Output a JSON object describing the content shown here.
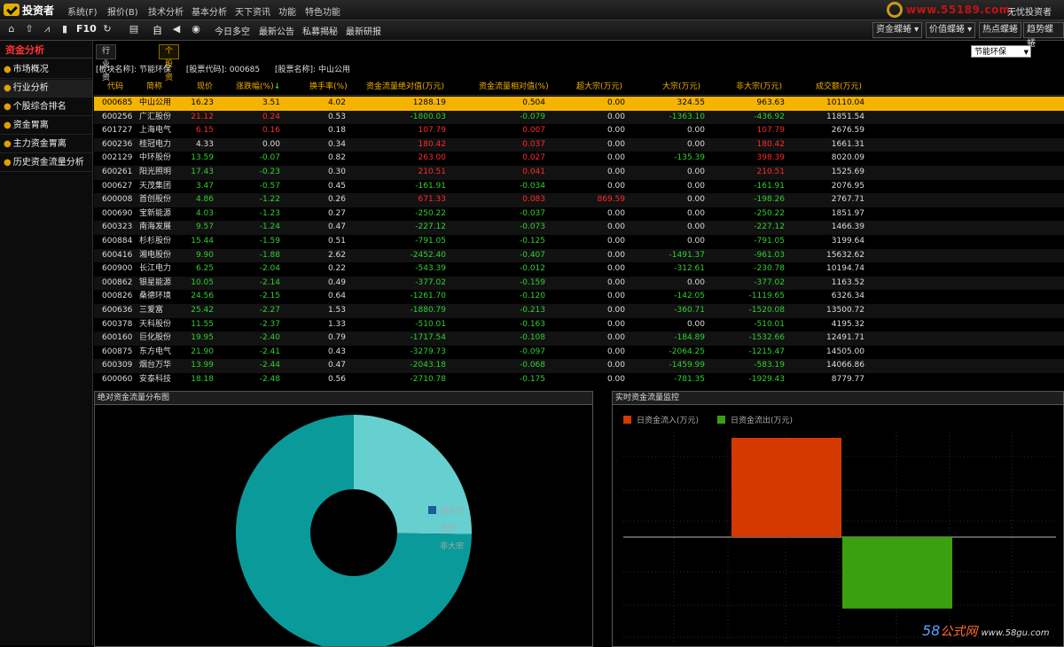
{
  "app": {
    "name": "投资者",
    "user": "无忧投资者",
    "site": "www.55189.com"
  },
  "menu": [
    "系统(F)",
    "报价(B)",
    "技术分析",
    "基本分析",
    "天下资讯",
    "功能",
    "特色功能"
  ],
  "toolbar": {
    "icons": [
      "home-icon",
      "up-arrow-icon",
      "trend-icon",
      "bar-icon",
      "F10",
      "refresh-icon",
      "list-icon",
      "self-icon",
      "sound-icon",
      "record-icon"
    ],
    "f10": "F10",
    "self": "自",
    "links": [
      "今日多空",
      "最新公告",
      "私募揭秘",
      "最新研报"
    ],
    "right_buttons": [
      "资金蝶蜷",
      "价值蝶蜷",
      "热点蝶蜷",
      "趋势蝶蜷"
    ]
  },
  "sidebar": {
    "title": "资金分析",
    "items": [
      "市场概况",
      "行业分析",
      "个股综合排名",
      "资金胃离",
      "主力资金胃离",
      "历史资金流量分析"
    ],
    "active_index": 1
  },
  "tabs": [
    "行业资金流量",
    "个股资金流量明细"
  ],
  "active_tab": 1,
  "sector_select": "节能环保",
  "info": {
    "sector_label": "[板块名称]:",
    "sector_value": "节能环保",
    "code_label": "[股票代码]:",
    "code_value": "000685",
    "name_label": "[股票名称]:",
    "name_value": "中山公用"
  },
  "table": {
    "headers": [
      "代码",
      "简称",
      "现价",
      "涨跌幅(%)",
      "换手率(%)",
      "资金流量绝对值(万元)",
      "资金流量相对值(%)",
      "超大宗(万元)",
      "大宗(万元)",
      "非大宗(万元)",
      "成交额(万元)"
    ],
    "sort_indicator": "↓",
    "rows": [
      [
        "000685",
        "中山公用",
        "16.23",
        "3.51",
        "4.02",
        "1288.19",
        "0.504",
        "0.00",
        "324.55",
        "963.63",
        "10110.04"
      ],
      [
        "600256",
        "广汇股份",
        "21.12",
        "0.24",
        "0.53",
        "-1800.03",
        "-0.079",
        "0.00",
        "-1363.10",
        "-436.92",
        "11851.54"
      ],
      [
        "601727",
        "上海电气",
        "6.15",
        "0.16",
        "0.18",
        "107.79",
        "0.007",
        "0.00",
        "0.00",
        "107.79",
        "2676.59"
      ],
      [
        "600236",
        "桂冠电力",
        "4.33",
        "0.00",
        "0.34",
        "180.42",
        "0.037",
        "0.00",
        "0.00",
        "180.42",
        "1661.31"
      ],
      [
        "002129",
        "中环股份",
        "13.59",
        "-0.07",
        "0.82",
        "263.00",
        "0.027",
        "0.00",
        "-135.39",
        "398.39",
        "8020.09"
      ],
      [
        "600261",
        "阳光照明",
        "17.43",
        "-0.23",
        "0.30",
        "210.51",
        "0.041",
        "0.00",
        "0.00",
        "210.51",
        "1525.69"
      ],
      [
        "000627",
        "天茂集团",
        "3.47",
        "-0.57",
        "0.45",
        "-161.91",
        "-0.034",
        "0.00",
        "0.00",
        "-161.91",
        "2076.95"
      ],
      [
        "600008",
        "首创股份",
        "4.86",
        "-1.22",
        "0.26",
        "671.33",
        "0.083",
        "869.59",
        "0.00",
        "-198.26",
        "2767.71"
      ],
      [
        "000690",
        "宝新能源",
        "4.03",
        "-1.23",
        "0.27",
        "-250.22",
        "-0.037",
        "0.00",
        "0.00",
        "-250.22",
        "1851.97"
      ],
      [
        "600323",
        "南海发展",
        "9.57",
        "-1.24",
        "0.47",
        "-227.12",
        "-0.073",
        "0.00",
        "0.00",
        "-227.12",
        "1466.39"
      ],
      [
        "600884",
        "杉杉股份",
        "15.44",
        "-1.59",
        "0.51",
        "-791.05",
        "-0.125",
        "0.00",
        "0.00",
        "-791.05",
        "3199.64"
      ],
      [
        "600416",
        "湘电股份",
        "9.90",
        "-1.88",
        "2.62",
        "-2452.40",
        "-0.407",
        "0.00",
        "-1491.37",
        "-961.03",
        "15632.62"
      ],
      [
        "600900",
        "长江电力",
        "6.25",
        "-2.04",
        "0.22",
        "-543.39",
        "-0.012",
        "0.00",
        "-312.61",
        "-230.78",
        "10194.74"
      ],
      [
        "000862",
        "银星能源",
        "10.05",
        "-2.14",
        "0.49",
        "-377.02",
        "-0.159",
        "0.00",
        "0.00",
        "-377.02",
        "1163.52"
      ],
      [
        "000826",
        "桑德环境",
        "24.56",
        "-2.15",
        "0.64",
        "-1261.70",
        "-0.120",
        "0.00",
        "-142.05",
        "-1119.65",
        "6326.34"
      ],
      [
        "600636",
        "三爱富",
        "25.42",
        "-2.27",
        "1.53",
        "-1880.79",
        "-0.213",
        "0.00",
        "-360.71",
        "-1520.08",
        "13500.72"
      ],
      [
        "600378",
        "天科股份",
        "11.55",
        "-2.37",
        "1.33",
        "-510.01",
        "-0.163",
        "0.00",
        "0.00",
        "-510.01",
        "4195.32"
      ],
      [
        "600160",
        "巨化股份",
        "19.95",
        "-2.40",
        "0.79",
        "-1717.54",
        "-0.108",
        "0.00",
        "-184.89",
        "-1532.66",
        "12491.71"
      ],
      [
        "600875",
        "东方电气",
        "21.90",
        "-2.41",
        "0.43",
        "-3279.73",
        "-0.097",
        "0.00",
        "-2064.25",
        "-1215.47",
        "14505.00"
      ],
      [
        "600309",
        "烟台万华",
        "13.99",
        "-2.44",
        "0.47",
        "-2043.18",
        "-0.068",
        "0.00",
        "-1459.99",
        "-583.19",
        "14066.86"
      ],
      [
        "600060",
        "安泰科技",
        "18.18",
        "-2.48",
        "0.56",
        "-2710.78",
        "-0.175",
        "0.00",
        "-781.35",
        "-1929.43",
        "8779.77"
      ]
    ]
  },
  "chart_data": [
    {
      "type": "pie",
      "title": "绝对资金流量分布图",
      "labels": [
        "超大宗",
        "大宗",
        "非大宗"
      ],
      "values": [
        0,
        324.55,
        963.63
      ],
      "colors": [
        "#1e5c9a",
        "#66cfcf",
        "#0b9a9a"
      ]
    },
    {
      "type": "bar",
      "title": "实时资金流量监控",
      "series": [
        {
          "name": "日资金流入(万元)",
          "color": "#d43a00",
          "values": [
            1
          ]
        },
        {
          "name": "日资金流出(万元)",
          "color": "#3aa010",
          "values": [
            -0.72
          ]
        }
      ]
    }
  ],
  "watermark": {
    "a": "58",
    "b": "公式网",
    "c": "www.58gu.com"
  }
}
